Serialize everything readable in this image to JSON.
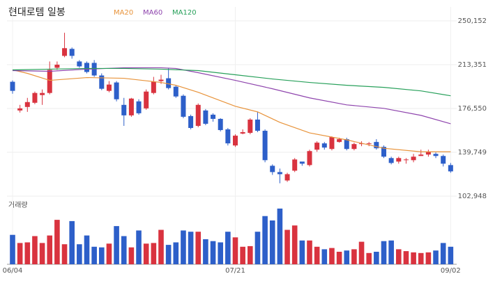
{
  "chart_data": {
    "type": "candlestick",
    "title": "현대로템 일봉",
    "volume_label": "거래량",
    "up_color": "#d9333f",
    "down_color": "#2d5fc9",
    "categories": [
      "06/04",
      null,
      null,
      null,
      null,
      null,
      null,
      null,
      null,
      null,
      null,
      null,
      null,
      null,
      null,
      null,
      null,
      null,
      null,
      null,
      null,
      null,
      null,
      null,
      null,
      null,
      null,
      null,
      null,
      null,
      "07/21",
      null,
      null,
      null,
      null,
      null,
      null,
      null,
      null,
      null,
      null,
      null,
      null,
      null,
      null,
      null,
      null,
      null,
      null,
      null,
      null,
      null,
      null,
      null,
      null,
      null,
      null,
      null,
      null,
      "09/02"
    ],
    "open": [
      198994,
      174886,
      177826,
      181354,
      187822,
      189586,
      210754,
      220750,
      226630,
      216046,
      214870,
      214870,
      204286,
      191350,
      198406,
      179590,
      170770,
      182530,
      176650,
      189586,
      199582,
      201934,
      194878,
      187234,
      170182,
      161950,
      174886,
      171358,
      167830,
      159010,
      145486,
      155482,
      156070,
      167242,
      157834,
      128434,
      123142,
      116086,
      124318,
      131962,
      129022,
      141958,
      147250,
      142546,
      148426,
      150778,
      142546,
      146662,
      146662,
      148426,
      144310,
      134902,
      131962,
      133138,
      133138,
      136666,
      137842,
      138430,
      136666,
      129022
    ],
    "close": [
      191350,
      176650,
      181942,
      189586,
      189586,
      208990,
      213346,
      227218,
      220750,
      211930,
      207226,
      204286,
      193114,
      196642,
      184294,
      170770,
      184882,
      172534,
      190762,
      198994,
      200758,
      193702,
      186646,
      169594,
      160186,
      179590,
      163714,
      167830,
      158422,
      147250,
      153718,
      156658,
      167242,
      157834,
      133138,
      123142,
      121378,
      121378,
      133726,
      130198,
      140782,
      147838,
      143722,
      152542,
      150778,
      142546,
      146662,
      147250,
      147250,
      143134,
      136078,
      130786,
      134902,
      133726,
      136078,
      137842,
      140194,
      136666,
      130198,
      123730
    ],
    "high": [
      200170,
      179590,
      185470,
      190762,
      192526,
      216046,
      216046,
      240154,
      227806,
      217222,
      216046,
      217222,
      206050,
      199582,
      199582,
      185470,
      185470,
      184294,
      192526,
      203110,
      204874,
      210754,
      196054,
      188410,
      171358,
      180766,
      176062,
      172534,
      168418,
      160186,
      154894,
      159010,
      168418,
      173710,
      159010,
      129610,
      126082,
      122554,
      134902,
      131374,
      141958,
      149014,
      148426,
      153130,
      151954,
      151954,
      147838,
      149014,
      148426,
      150778,
      145486,
      136078,
      136078,
      134902,
      138430,
      141958,
      141958,
      139606,
      137842,
      130786
    ],
    "low": [
      188998,
      173122,
      173710,
      180178,
      179590,
      188410,
      208990,
      219574,
      218398,
      210754,
      206050,
      203110,
      191938,
      190174,
      182530,
      161950,
      169594,
      171358,
      175474,
      188410,
      197230,
      192526,
      185470,
      168418,
      159010,
      160774,
      162538,
      165478,
      157246,
      145486,
      144310,
      154894,
      154894,
      156658,
      131374,
      120790,
      113734,
      114910,
      123142,
      128434,
      127846,
      140194,
      141958,
      141370,
      147838,
      141370,
      141370,
      144898,
      144898,
      141958,
      134902,
      129610,
      130198,
      130198,
      131374,
      136666,
      136078,
      134902,
      127846,
      122554
    ],
    "volume": [
      470000,
      340000,
      350000,
      450000,
      340000,
      460000,
      710000,
      320000,
      690000,
      320000,
      460000,
      280000,
      270000,
      330000,
      610000,
      450000,
      270000,
      540000,
      330000,
      340000,
      550000,
      310000,
      350000,
      540000,
      520000,
      520000,
      400000,
      370000,
      350000,
      520000,
      430000,
      280000,
      290000,
      520000,
      770000,
      700000,
      890000,
      550000,
      620000,
      380000,
      380000,
      280000,
      240000,
      260000,
      200000,
      220000,
      240000,
      360000,
      180000,
      200000,
      370000,
      380000,
      240000,
      210000,
      190000,
      180000,
      190000,
      220000,
      340000,
      280000
    ],
    "volume_lim": [
      0,
      1000000
    ],
    "ylim": [
      102948,
      250152
    ],
    "yticks": [
      {
        "value": 250152,
        "label": "250,152"
      },
      {
        "value": 213351,
        "label": "213,351"
      },
      {
        "value": 176550,
        "label": "176,550"
      },
      {
        "value": 139749,
        "label": "139,749"
      },
      {
        "value": 102948,
        "label": "102,948"
      }
    ],
    "grid": true,
    "series": [
      {
        "name": "MA20",
        "color": "#e8933a",
        "x": [
          0,
          2,
          5,
          10,
          15,
          20,
          22,
          25,
          30,
          33,
          36,
          40,
          45,
          50,
          55,
          59
        ],
        "values": [
          208990,
          206050,
          200170,
          202522,
          201934,
          198406,
          196054,
          190174,
          178414,
          173710,
          164890,
          156070,
          150190,
          143134,
          140194,
          140194
        ]
      },
      {
        "name": "MA60",
        "color": "#8e44ad",
        "x": [
          0,
          5,
          10,
          15,
          20,
          22,
          25,
          30,
          35,
          40,
          45,
          50,
          55,
          59
        ],
        "values": [
          208402,
          207814,
          209578,
          210754,
          210754,
          210166,
          206638,
          200170,
          193114,
          185470,
          179590,
          176650,
          170770,
          163714
        ]
      },
      {
        "name": "MA120",
        "color": "#27a05a",
        "x": [
          0,
          5,
          10,
          15,
          20,
          25,
          30,
          35,
          40,
          45,
          50,
          55,
          59
        ],
        "values": [
          208990,
          209578,
          210166,
          210166,
          209578,
          208402,
          204874,
          201346,
          198406,
          196054,
          194290,
          191350,
          187234
        ]
      }
    ]
  }
}
